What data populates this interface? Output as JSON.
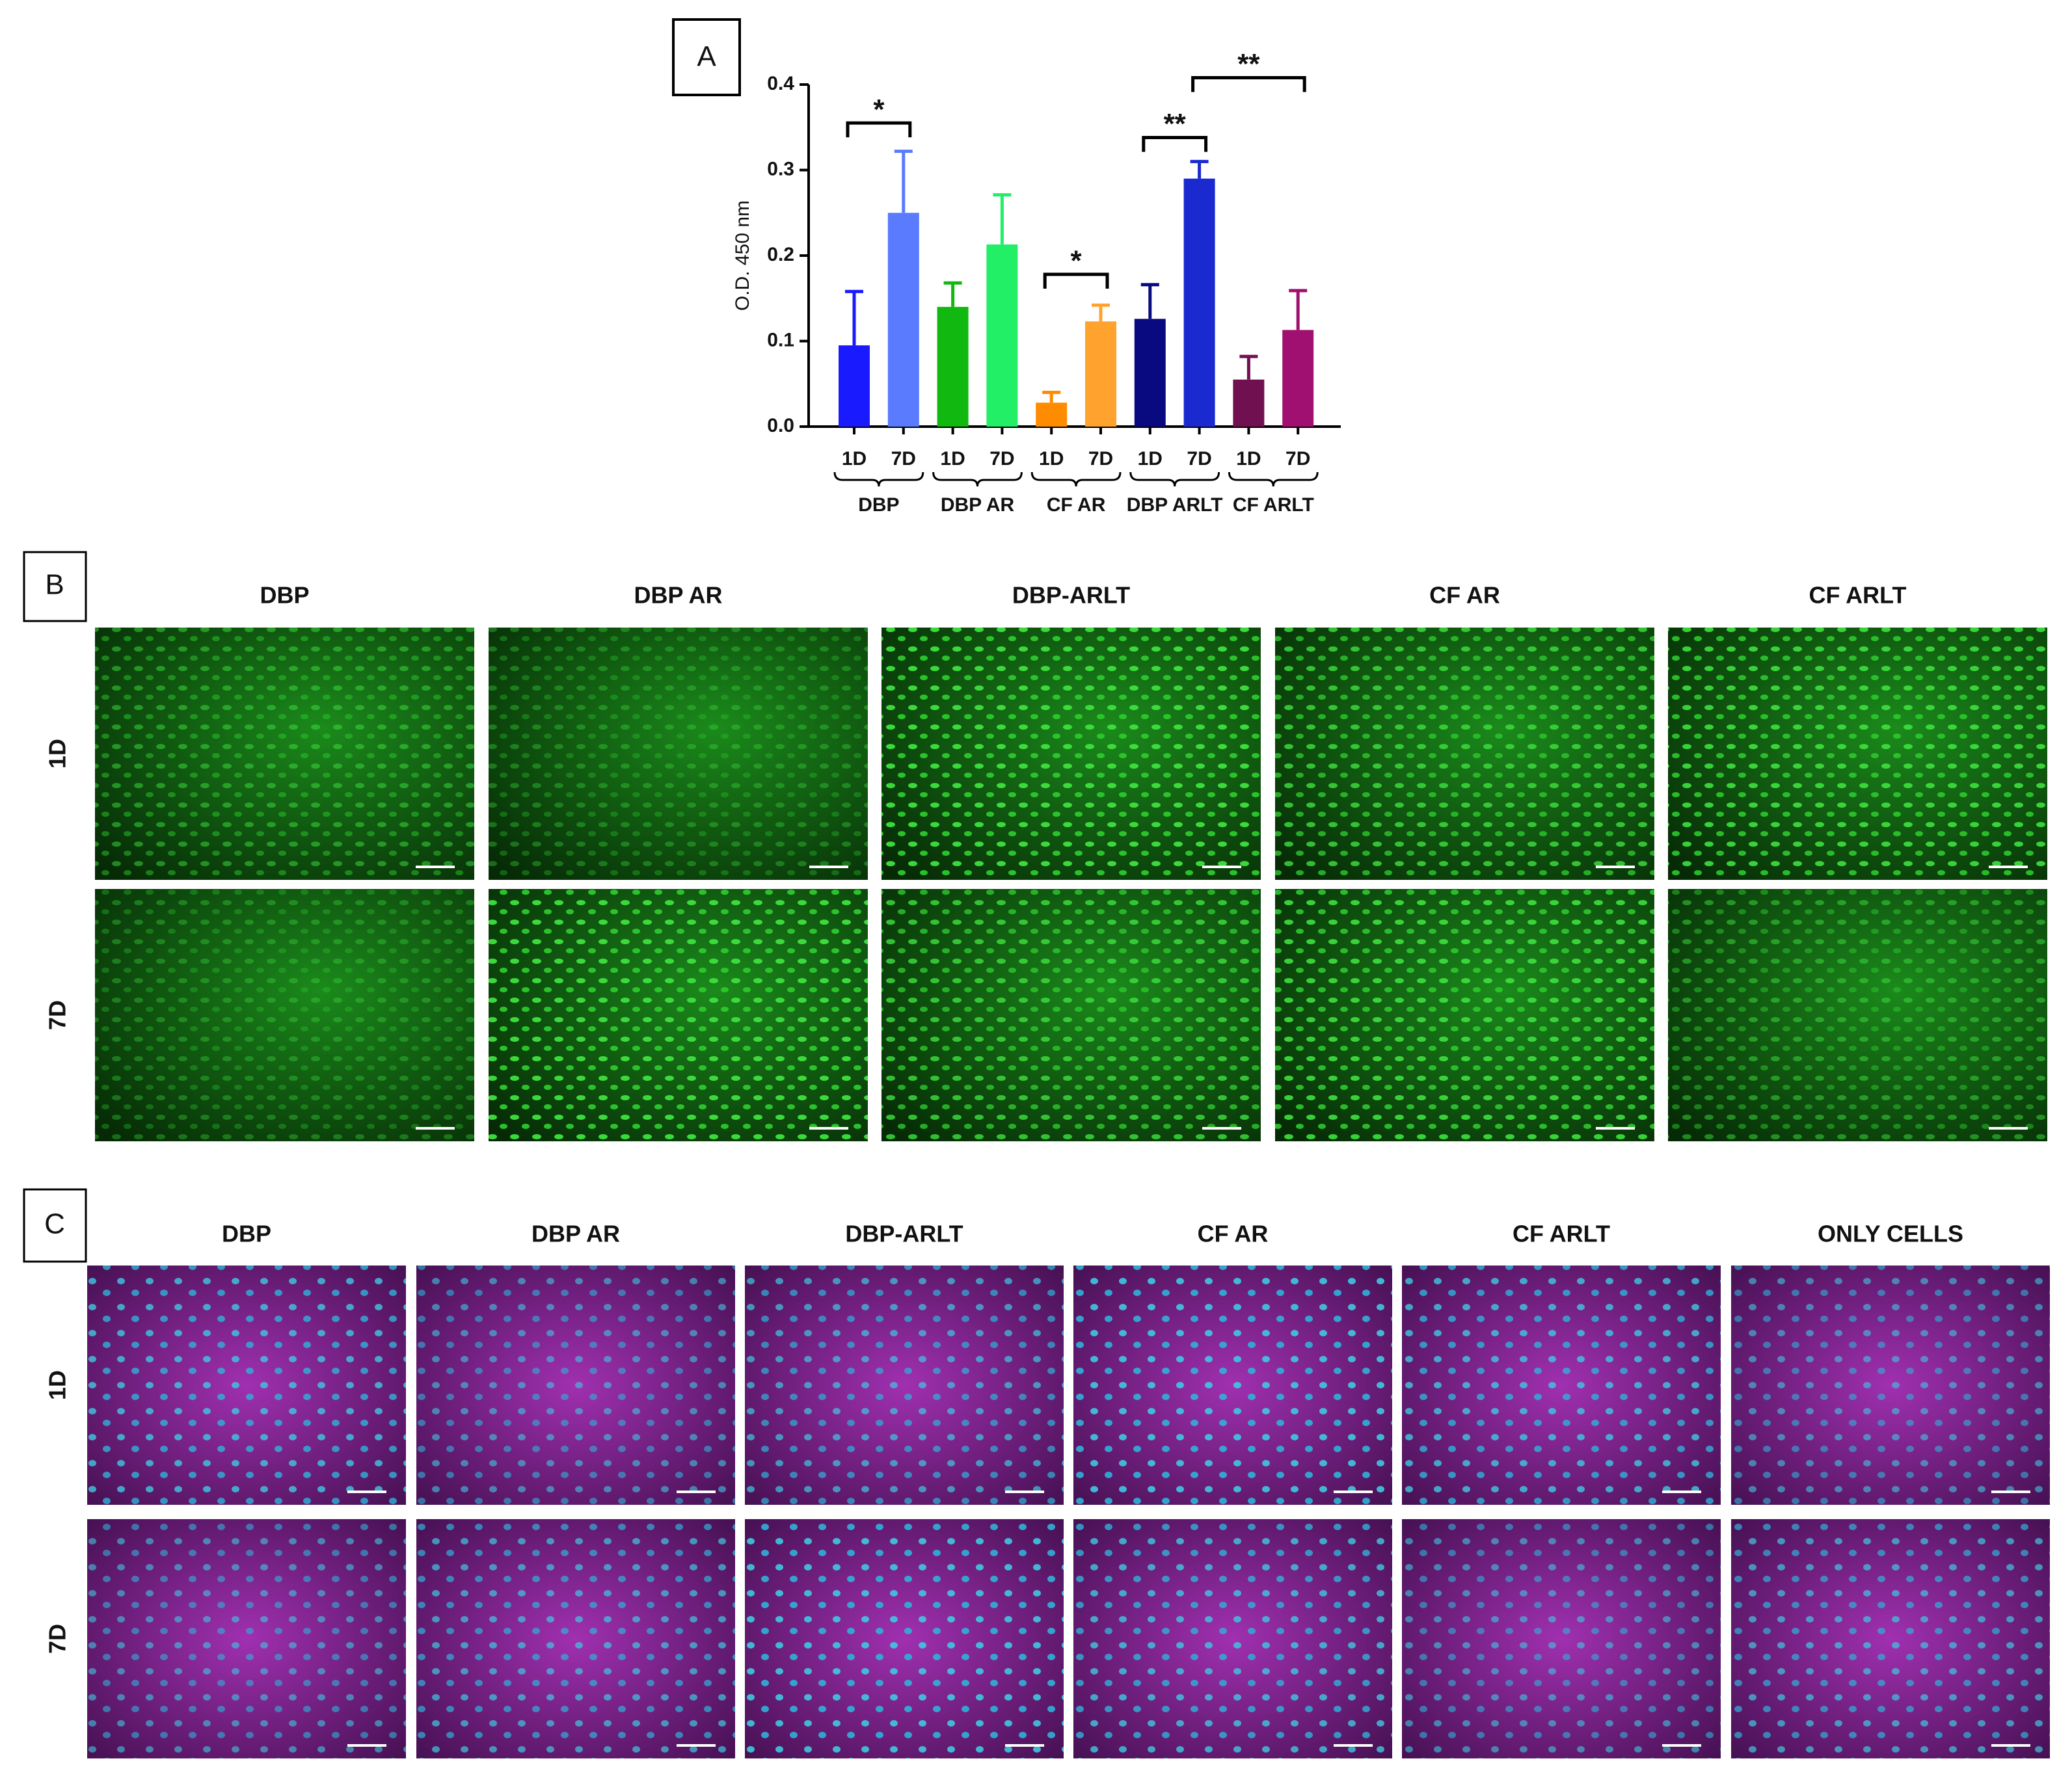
{
  "chart_data": {
    "type": "bar",
    "panel_label": "A",
    "y_label": "O.D. 450 nm",
    "categories": [
      "1D",
      "7D",
      "1D",
      "7D",
      "1D",
      "7D",
      "1D",
      "7D",
      "1D",
      "7D"
    ],
    "groups": [
      "DBP",
      "DBP AR",
      "CF AR",
      "DBP ARLT",
      "CF ARLT"
    ],
    "values": [
      0.095,
      0.25,
      0.14,
      0.213,
      0.028,
      0.123,
      0.126,
      0.29,
      0.055,
      0.113
    ],
    "errors": [
      0.063,
      0.072,
      0.028,
      0.058,
      0.012,
      0.019,
      0.04,
      0.02,
      0.027,
      0.046
    ],
    "colors": [
      "#1a1aff",
      "#5b7bff",
      "#10b810",
      "#22ee66",
      "#ff8c00",
      "#ffa22e",
      "#0a0a80",
      "#1a2ad0",
      "#701050",
      "#a01070"
    ],
    "annotations": [
      "*",
      "*",
      "**",
      "**"
    ],
    "ylim": [
      0,
      0.4
    ],
    "yticks": [
      {
        "value": 0,
        "label": "0.0"
      },
      0.1,
      0.2,
      0.3,
      0.4
    ]
  },
  "panel_b": {
    "label": "B",
    "columns": [
      "DBP",
      "DBP AR",
      "DBP-ARLT",
      "CF AR",
      "CF ARLT"
    ],
    "rows": [
      "1D",
      "7D"
    ]
  },
  "panel_c": {
    "label": "C",
    "columns": [
      "DBP",
      "DBP AR",
      "DBP-ARLT",
      "CF AR",
      "CF ARLT",
      "ONLY CELLS"
    ],
    "rows": [
      "1D",
      "7D"
    ]
  }
}
